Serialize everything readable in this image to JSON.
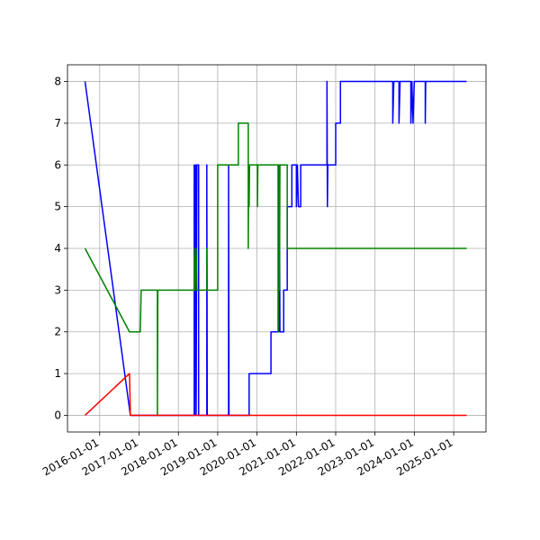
{
  "chart_data": {
    "type": "line",
    "xlim": [
      "2015-03-08",
      "2025-10-28"
    ],
    "xticks": [
      "2016-01-01",
      "2017-01-01",
      "2018-01-01",
      "2019-01-01",
      "2020-01-01",
      "2021-01-01",
      "2022-01-01",
      "2023-01-01",
      "2024-01-01",
      "2025-01-01"
    ],
    "ylim": [
      -0.4,
      8.4
    ],
    "yticks": [
      0,
      1,
      2,
      3,
      4,
      5,
      6,
      7,
      8
    ],
    "grid": true,
    "series": [
      {
        "color": "#0000ff",
        "x": [
          "2015-08-18",
          "2016-10-12",
          "2018-05-28",
          "2018-05-28",
          "2018-06-01",
          "2018-06-10",
          "2018-06-15",
          "2018-06-22",
          "2018-07-08",
          "2018-07-08",
          "2018-09-22",
          "2018-09-22",
          "2018-09-26",
          "2019-04-12",
          "2019-04-12",
          "2019-04-16",
          "2019-10-20",
          "2019-10-20",
          "2020-05-10",
          "2020-05-10",
          "2020-07-16",
          "2020-07-16",
          "2020-07-20",
          "2020-07-26",
          "2020-08-01",
          "2020-09-05",
          "2020-09-05",
          "2020-10-08",
          "2020-10-08",
          "2020-11-20",
          "2020-11-20",
          "2021-01-01",
          "2021-01-01",
          "2021-01-10",
          "2021-01-20",
          "2021-02-10",
          "2021-02-10",
          "2021-10-12",
          "2021-10-12",
          "2021-10-16",
          "2021-10-20",
          "2022-01-01",
          "2022-01-01",
          "2022-02-14",
          "2022-02-14",
          "2023-06-15",
          "2023-06-15",
          "2023-06-25",
          "2023-08-12",
          "2023-08-12",
          "2023-08-22",
          "2023-11-30",
          "2023-11-30",
          "2023-12-10",
          "2023-12-20",
          "2024-01-01",
          "2024-04-12",
          "2024-04-12",
          "2024-04-16",
          "2025-05-01"
        ],
        "values": [
          8,
          0,
          0,
          6,
          0,
          6,
          0,
          6,
          6,
          0,
          0,
          6,
          0,
          0,
          6,
          0,
          0,
          1,
          1,
          2,
          2,
          6,
          2,
          6,
          2,
          2,
          3,
          3,
          5,
          5,
          6,
          6,
          5,
          6,
          5,
          5,
          6,
          6,
          8,
          5,
          6,
          6,
          7,
          7,
          8,
          8,
          7,
          8,
          8,
          7,
          8,
          8,
          7,
          8,
          7,
          8,
          8,
          7,
          8,
          8
        ]
      },
      {
        "color": "#008000",
        "x": [
          "2015-08-18",
          "2016-10-04",
          "2017-01-12",
          "2017-01-20",
          "2017-06-20",
          "2017-06-20",
          "2017-06-24",
          "2018-05-28",
          "2018-05-28",
          "2018-06-05",
          "2018-06-15",
          "2018-06-22",
          "2018-09-22",
          "2018-09-22",
          "2018-09-26",
          "2019-01-01",
          "2019-01-01",
          "2019-07-12",
          "2019-07-12",
          "2019-10-12",
          "2019-10-12",
          "2019-10-16",
          "2019-10-20",
          "2019-10-24",
          "2020-01-05",
          "2020-01-05",
          "2020-01-09",
          "2020-07-16",
          "2020-07-16",
          "2020-07-22",
          "2020-07-28",
          "2020-08-01",
          "2020-10-08",
          "2020-10-08",
          "2025-05-01"
        ],
        "values": [
          4,
          2,
          2,
          3,
          3,
          0,
          3,
          3,
          4,
          3,
          4,
          3,
          3,
          4,
          3,
          3,
          6,
          6,
          7,
          7,
          4,
          6,
          5,
          6,
          6,
          5,
          6,
          6,
          2,
          6,
          3,
          6,
          6,
          4,
          4
        ]
      },
      {
        "color": "#ff0000",
        "x": [
          "2015-08-18",
          "2016-10-04",
          "2016-10-12",
          "2025-05-01"
        ],
        "values": [
          0,
          1,
          0,
          0
        ]
      }
    ]
  }
}
